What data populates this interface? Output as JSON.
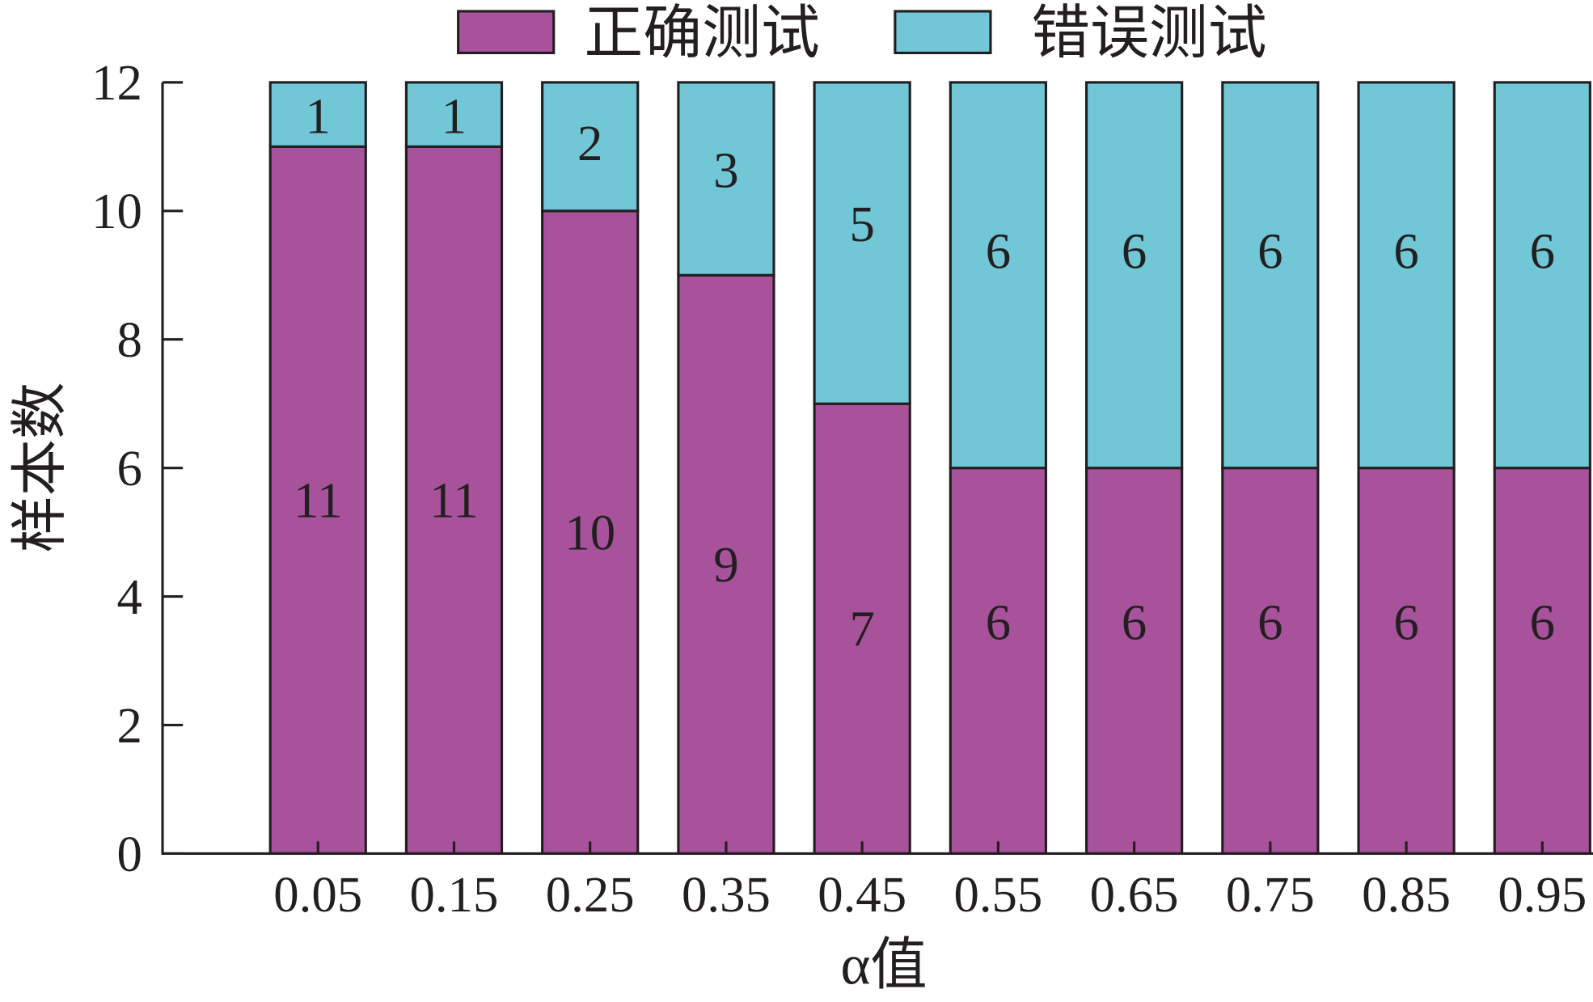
{
  "chart_data": {
    "type": "bar",
    "stacked": true,
    "categories": [
      "0.05",
      "0.15",
      "0.25",
      "0.35",
      "0.45",
      "0.55",
      "0.65",
      "0.75",
      "0.85",
      "0.95"
    ],
    "series": [
      {
        "name": "正确测试",
        "color": "#A8529B",
        "values": [
          11,
          11,
          10,
          9,
          7,
          6,
          6,
          6,
          6,
          6
        ]
      },
      {
        "name": "错误测试",
        "color": "#71C7D6",
        "values": [
          1,
          1,
          2,
          3,
          5,
          6,
          6,
          6,
          6,
          6
        ]
      }
    ],
    "xlabel": "α值",
    "ylabel": "样本数",
    "ylim": [
      0,
      12
    ],
    "yticks": [
      0,
      2,
      4,
      6,
      8,
      10,
      12
    ],
    "grid": false,
    "legend_position": "top",
    "data_labels": true
  }
}
